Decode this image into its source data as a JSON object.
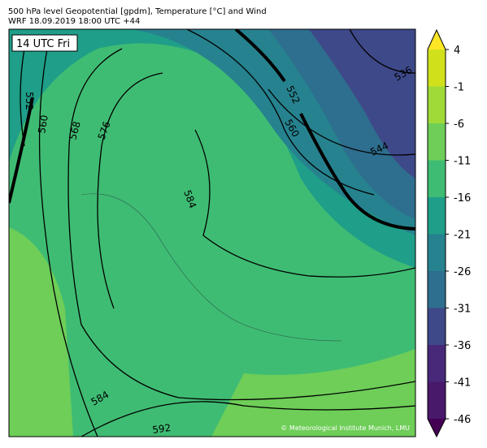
{
  "header": {
    "title": "500 hPa level Geopotential [gpdm], Temperature [°C] and Wind",
    "subtitle": "WRF 18.09.2019 18:00 UTC +44"
  },
  "map": {
    "time_label": "14 UTC Fri",
    "credit": "© Meteorological Institute Munich, LMU",
    "contour_labels": [
      "552",
      "560",
      "568",
      "576",
      "584",
      "552",
      "560",
      "544",
      "536",
      "584",
      "592"
    ]
  },
  "colorbar": {
    "ticks": [
      4,
      -1,
      -6,
      -11,
      -16,
      -21,
      -26,
      -31,
      -36,
      -41,
      -46
    ],
    "colors": [
      "#d0e11c",
      "#a0da39",
      "#6ece58",
      "#3fbc73",
      "#1f9e89",
      "#26828e",
      "#2e6e8e",
      "#3e4989",
      "#482878",
      "#48186a"
    ],
    "over_color": "#fde725",
    "under_color": "#440154"
  }
}
